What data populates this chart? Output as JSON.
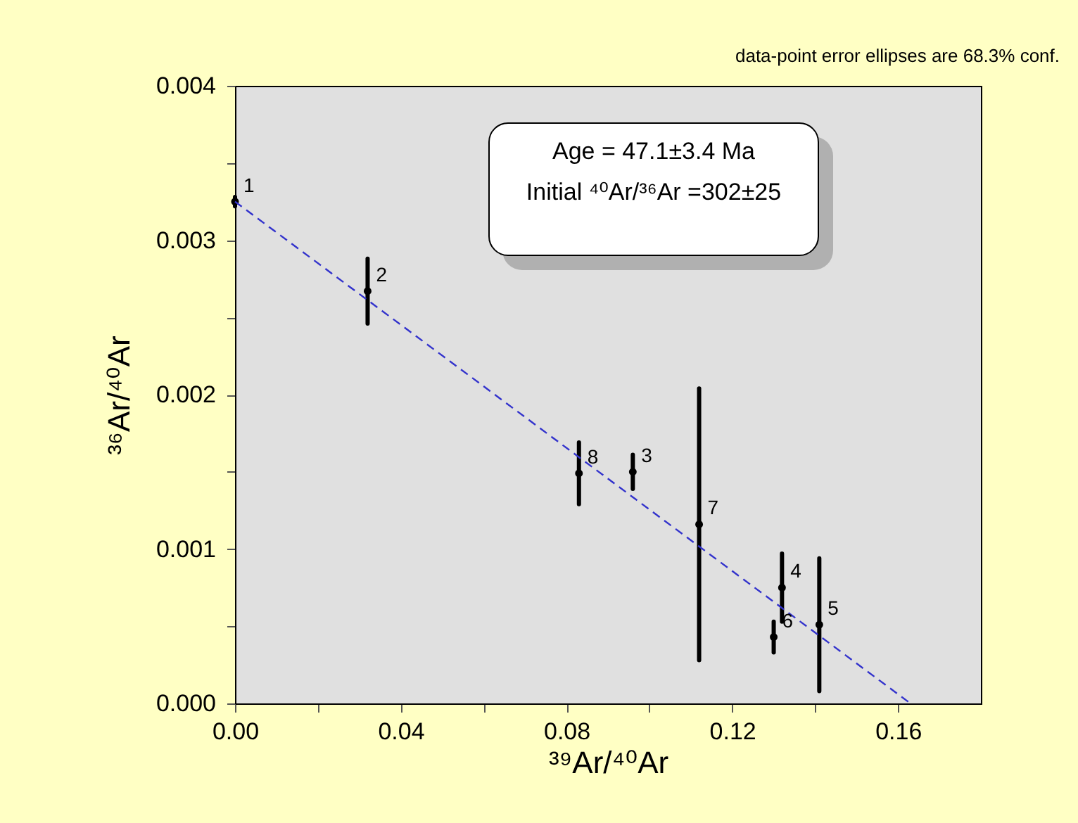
{
  "chart_data": {
    "type": "scatter",
    "xlabel": "³⁹Ar/⁴⁰Ar",
    "ylabel": "³⁶Ar/⁴⁰Ar",
    "x": [
      0.0,
      0.032,
      0.096,
      0.132,
      0.141,
      0.13,
      0.112,
      0.083
    ],
    "series": [
      {
        "color": "#000000",
        "values": [
          0.00325,
          0.00267,
          0.0015,
          0.00075,
          0.00051,
          0.00043,
          0.00116,
          0.00149
        ],
        "errors": [
          3e-05,
          0.00021,
          0.00011,
          0.00022,
          0.00043,
          0.0001,
          0.00088,
          0.0002
        ]
      },
      {
        "type": "line",
        "color": "#3333cc",
        "line_style": "dashed",
        "x": [
          0,
          0.163
        ],
        "values": [
          0.00325,
          0
        ]
      }
    ],
    "xlim": [
      0,
      0.18
    ],
    "xticks": [
      {
        "value": 0,
        "label": "0.00"
      },
      {
        "value": 0.02,
        "label": null
      },
      {
        "value": 0.04,
        "label": "0.04"
      },
      {
        "value": 0.06,
        "label": null
      },
      {
        "value": 0.08,
        "label": "0.08"
      },
      {
        "value": 0.1,
        "label": null
      },
      {
        "value": 0.12,
        "label": "0.12"
      },
      {
        "value": 0.14,
        "label": null
      },
      {
        "value": 0.16,
        "label": "0.16"
      }
    ],
    "ylim": [
      0,
      0.004
    ],
    "yticks": [
      {
        "value": 0,
        "label": "0.000"
      },
      {
        "value": 0.0005,
        "label": null
      },
      {
        "value": 0.001,
        "label": "0.001"
      },
      {
        "value": 0.0015,
        "label": null
      },
      {
        "value": 0.002,
        "label": "0.002"
      },
      {
        "value": 0.0025,
        "label": null
      },
      {
        "value": 0.003,
        "label": "0.003"
      },
      {
        "value": 0.0035,
        "label": null
      },
      {
        "value": 0.004,
        "label": "0.004"
      }
    ],
    "grid": false,
    "annotations": [
      "data-point error ellipses are 68.3% conf.",
      "Age = 47.1±3.4 Ma",
      "Initial ⁴⁰Ar/³⁶Ar =302±25",
      {
        "text": "1",
        "x": 0.0,
        "y": 0.00325
      },
      {
        "text": "2",
        "x": 0.032,
        "y": 0.00267
      },
      {
        "text": "3",
        "x": 0.096,
        "y": 0.0015
      },
      {
        "text": "4",
        "x": 0.132,
        "y": 0.00075
      },
      {
        "text": "5",
        "x": 0.141,
        "y": 0.00051
      },
      {
        "text": "6",
        "x": 0.13,
        "y": 0.00043
      },
      {
        "text": "7",
        "x": 0.112,
        "y": 0.00116
      },
      {
        "text": "8",
        "x": 0.083,
        "y": 0.00149
      }
    ]
  }
}
